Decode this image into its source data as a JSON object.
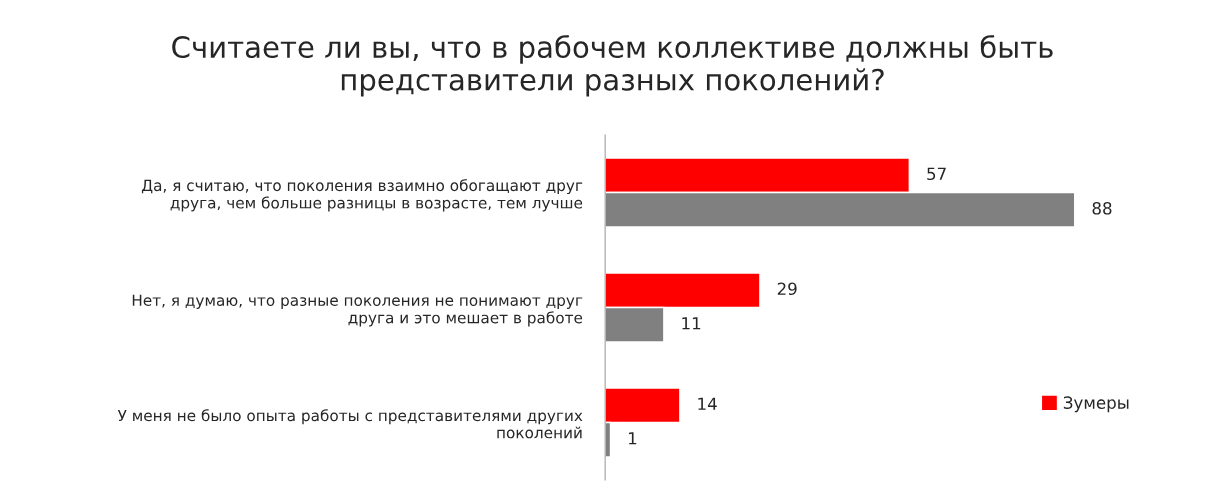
{
  "chart_data": {
    "type": "bar",
    "orientation": "horizontal",
    "title": "Считаете ли вы, что в рабочем коллективе должны быть представители разных поколений?",
    "categories": [
      "Да, я считаю, что поколения взаимно обогащают друг друга, чем больше разницы в возрасте, тем лучше",
      "Нет, я думаю, что разные поколения не понимают друг друга и это мешает в работе",
      "У меня не было опыта работы с представителями других поколений"
    ],
    "series": [
      {
        "name": "Зумеры",
        "color": "#ff0000",
        "values": [
          57,
          29,
          14
        ]
      },
      {
        "color": "#808080",
        "values": [
          88,
          11,
          1
        ]
      }
    ],
    "data_labels": true,
    "legend": "right",
    "grid": false,
    "tick_labels": "y"
  }
}
